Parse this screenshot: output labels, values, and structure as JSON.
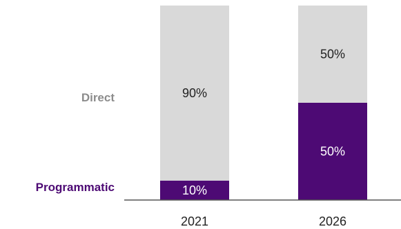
{
  "chart_data": {
    "type": "bar",
    "stacked": true,
    "categories": [
      "2021",
      "2026"
    ],
    "series": [
      {
        "name": "Programmatic",
        "values": [
          10,
          50
        ],
        "labels": [
          "10%",
          "50%"
        ],
        "color": "#4d0a74",
        "label_color": "#ffffff"
      },
      {
        "name": "Direct",
        "values": [
          90,
          50
        ],
        "labels": [
          "90%",
          "50%"
        ],
        "color": "#d9d9d9",
        "label_color": "#222222",
        "name_color": "#8c8c8c"
      }
    ],
    "ylim": [
      0,
      100
    ],
    "axis_color": "#555555",
    "legend": "left"
  }
}
